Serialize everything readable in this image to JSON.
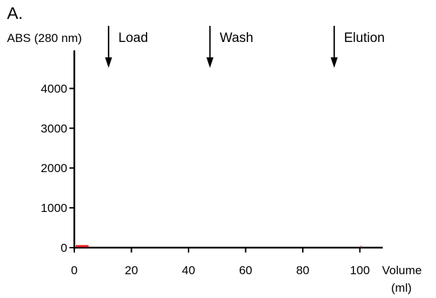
{
  "panel_label": "A.",
  "chart_data": {
    "type": "line",
    "title": "",
    "ylabel": "ABS (280 nm)",
    "xlabel": "Volume",
    "xlabel_unit": "(ml)",
    "xlim": [
      0,
      108
    ],
    "ylim": [
      0,
      4500
    ],
    "x_ticks": [
      0,
      20,
      40,
      60,
      80,
      100
    ],
    "y_ticks": [
      0,
      1000,
      2000,
      3000,
      4000
    ],
    "grid": false,
    "events": [
      {
        "label": "Load",
        "x": 12
      },
      {
        "label": "Wash",
        "x": 47.5
      },
      {
        "label": "Elution",
        "x": 91
      }
    ],
    "series": [
      {
        "color": "#e02020",
        "segments": [
          {
            "x": [
              0.5,
              5
            ],
            "y": [
              20,
              20
            ]
          },
          {
            "x": [
              100.3,
              100.6
            ],
            "y": [
              5,
              5
            ]
          }
        ]
      }
    ]
  },
  "colors": {
    "axis": "#000000",
    "trace": "#e02020"
  }
}
